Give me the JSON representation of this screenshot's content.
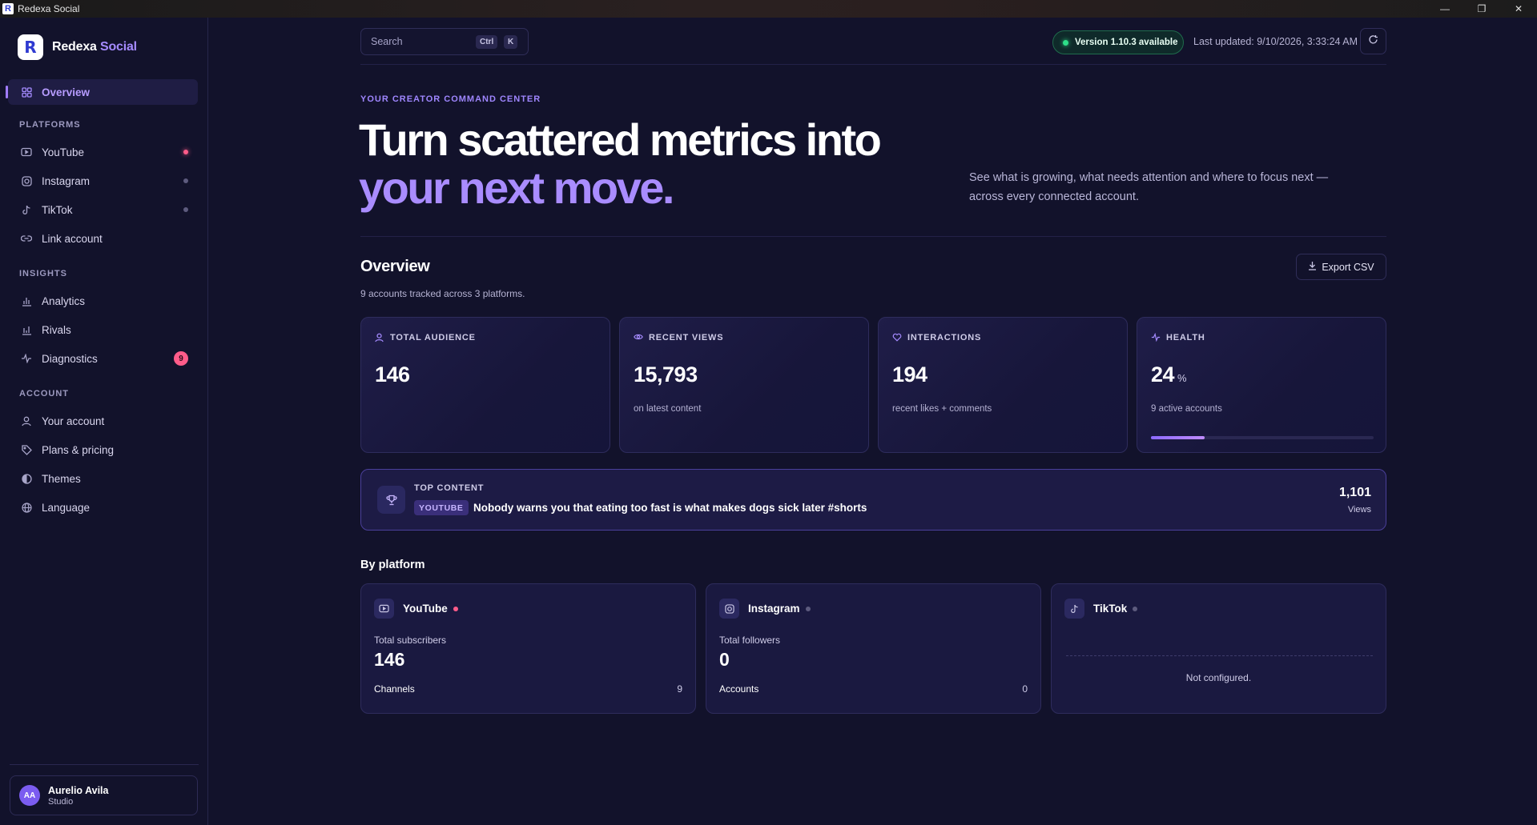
{
  "window": {
    "title": "Redexa Social"
  },
  "brand": {
    "name": "Redexa",
    "name_accent": "Social"
  },
  "nav": {
    "overview": "Overview",
    "platforms_heading": "PLATFORMS",
    "youtube": "YouTube",
    "instagram": "Instagram",
    "tiktok": "TikTok",
    "link_account": "Link account",
    "insights_heading": "INSIGHTS",
    "analytics": "Analytics",
    "rivals": "Rivals",
    "diagnostics": "Diagnostics",
    "diagnostics_badge": "9",
    "account_heading": "ACCOUNT",
    "your_account": "Your account",
    "plans": "Plans & pricing",
    "themes": "Themes",
    "language": "Language"
  },
  "user": {
    "initials": "AA",
    "name": "Aurelio Avila",
    "role": "Studio"
  },
  "topbar": {
    "search_placeholder": "Search",
    "kbd_ctrl": "Ctrl",
    "kbd_k": "K",
    "version": "Version 1.10.3 available",
    "last_updated": "Last updated: 9/10/2026, 3:33:24 AM"
  },
  "hero": {
    "eyebrow": "YOUR CREATOR COMMAND CENTER",
    "title_line1": "Turn scattered metrics into",
    "title_line2": "your next move.",
    "subtitle": "See what is growing, what needs attention and where to focus next — across every connected account."
  },
  "overview": {
    "title": "Overview",
    "subtitle": "9 accounts tracked across 3 platforms.",
    "export_label": "Export CSV"
  },
  "stats": {
    "audience": {
      "label": "TOTAL AUDIENCE",
      "value": "146"
    },
    "views": {
      "label": "RECENT VIEWS",
      "value": "15,793",
      "caption": "on latest content"
    },
    "interactions": {
      "label": "INTERACTIONS",
      "value": "194",
      "caption": "recent likes + comments"
    },
    "health": {
      "label": "HEALTH",
      "value": "24",
      "unit": "%",
      "caption": "9 active accounts",
      "progress": 0.24
    }
  },
  "top_content": {
    "label": "TOP CONTENT",
    "platform_tag": "YOUTUBE",
    "title": "Nobody warns you that eating too fast is what makes dogs sick later #shorts",
    "views": "1,101",
    "views_label": "Views"
  },
  "by_platform": {
    "heading": "By platform",
    "youtube": {
      "name": "YouTube",
      "metric_label": "Total subscribers",
      "metric_value": "146",
      "row_label": "Channels",
      "row_value": "9"
    },
    "instagram": {
      "name": "Instagram",
      "metric_label": "Total followers",
      "metric_value": "0",
      "row_label": "Accounts",
      "row_value": "0"
    },
    "tiktok": {
      "name": "TikTok",
      "empty": "Not configured."
    }
  },
  "colors": {
    "accent": "#a58bff",
    "alert": "#ff5c8a",
    "success": "#2ee089",
    "background": "#12122b"
  }
}
